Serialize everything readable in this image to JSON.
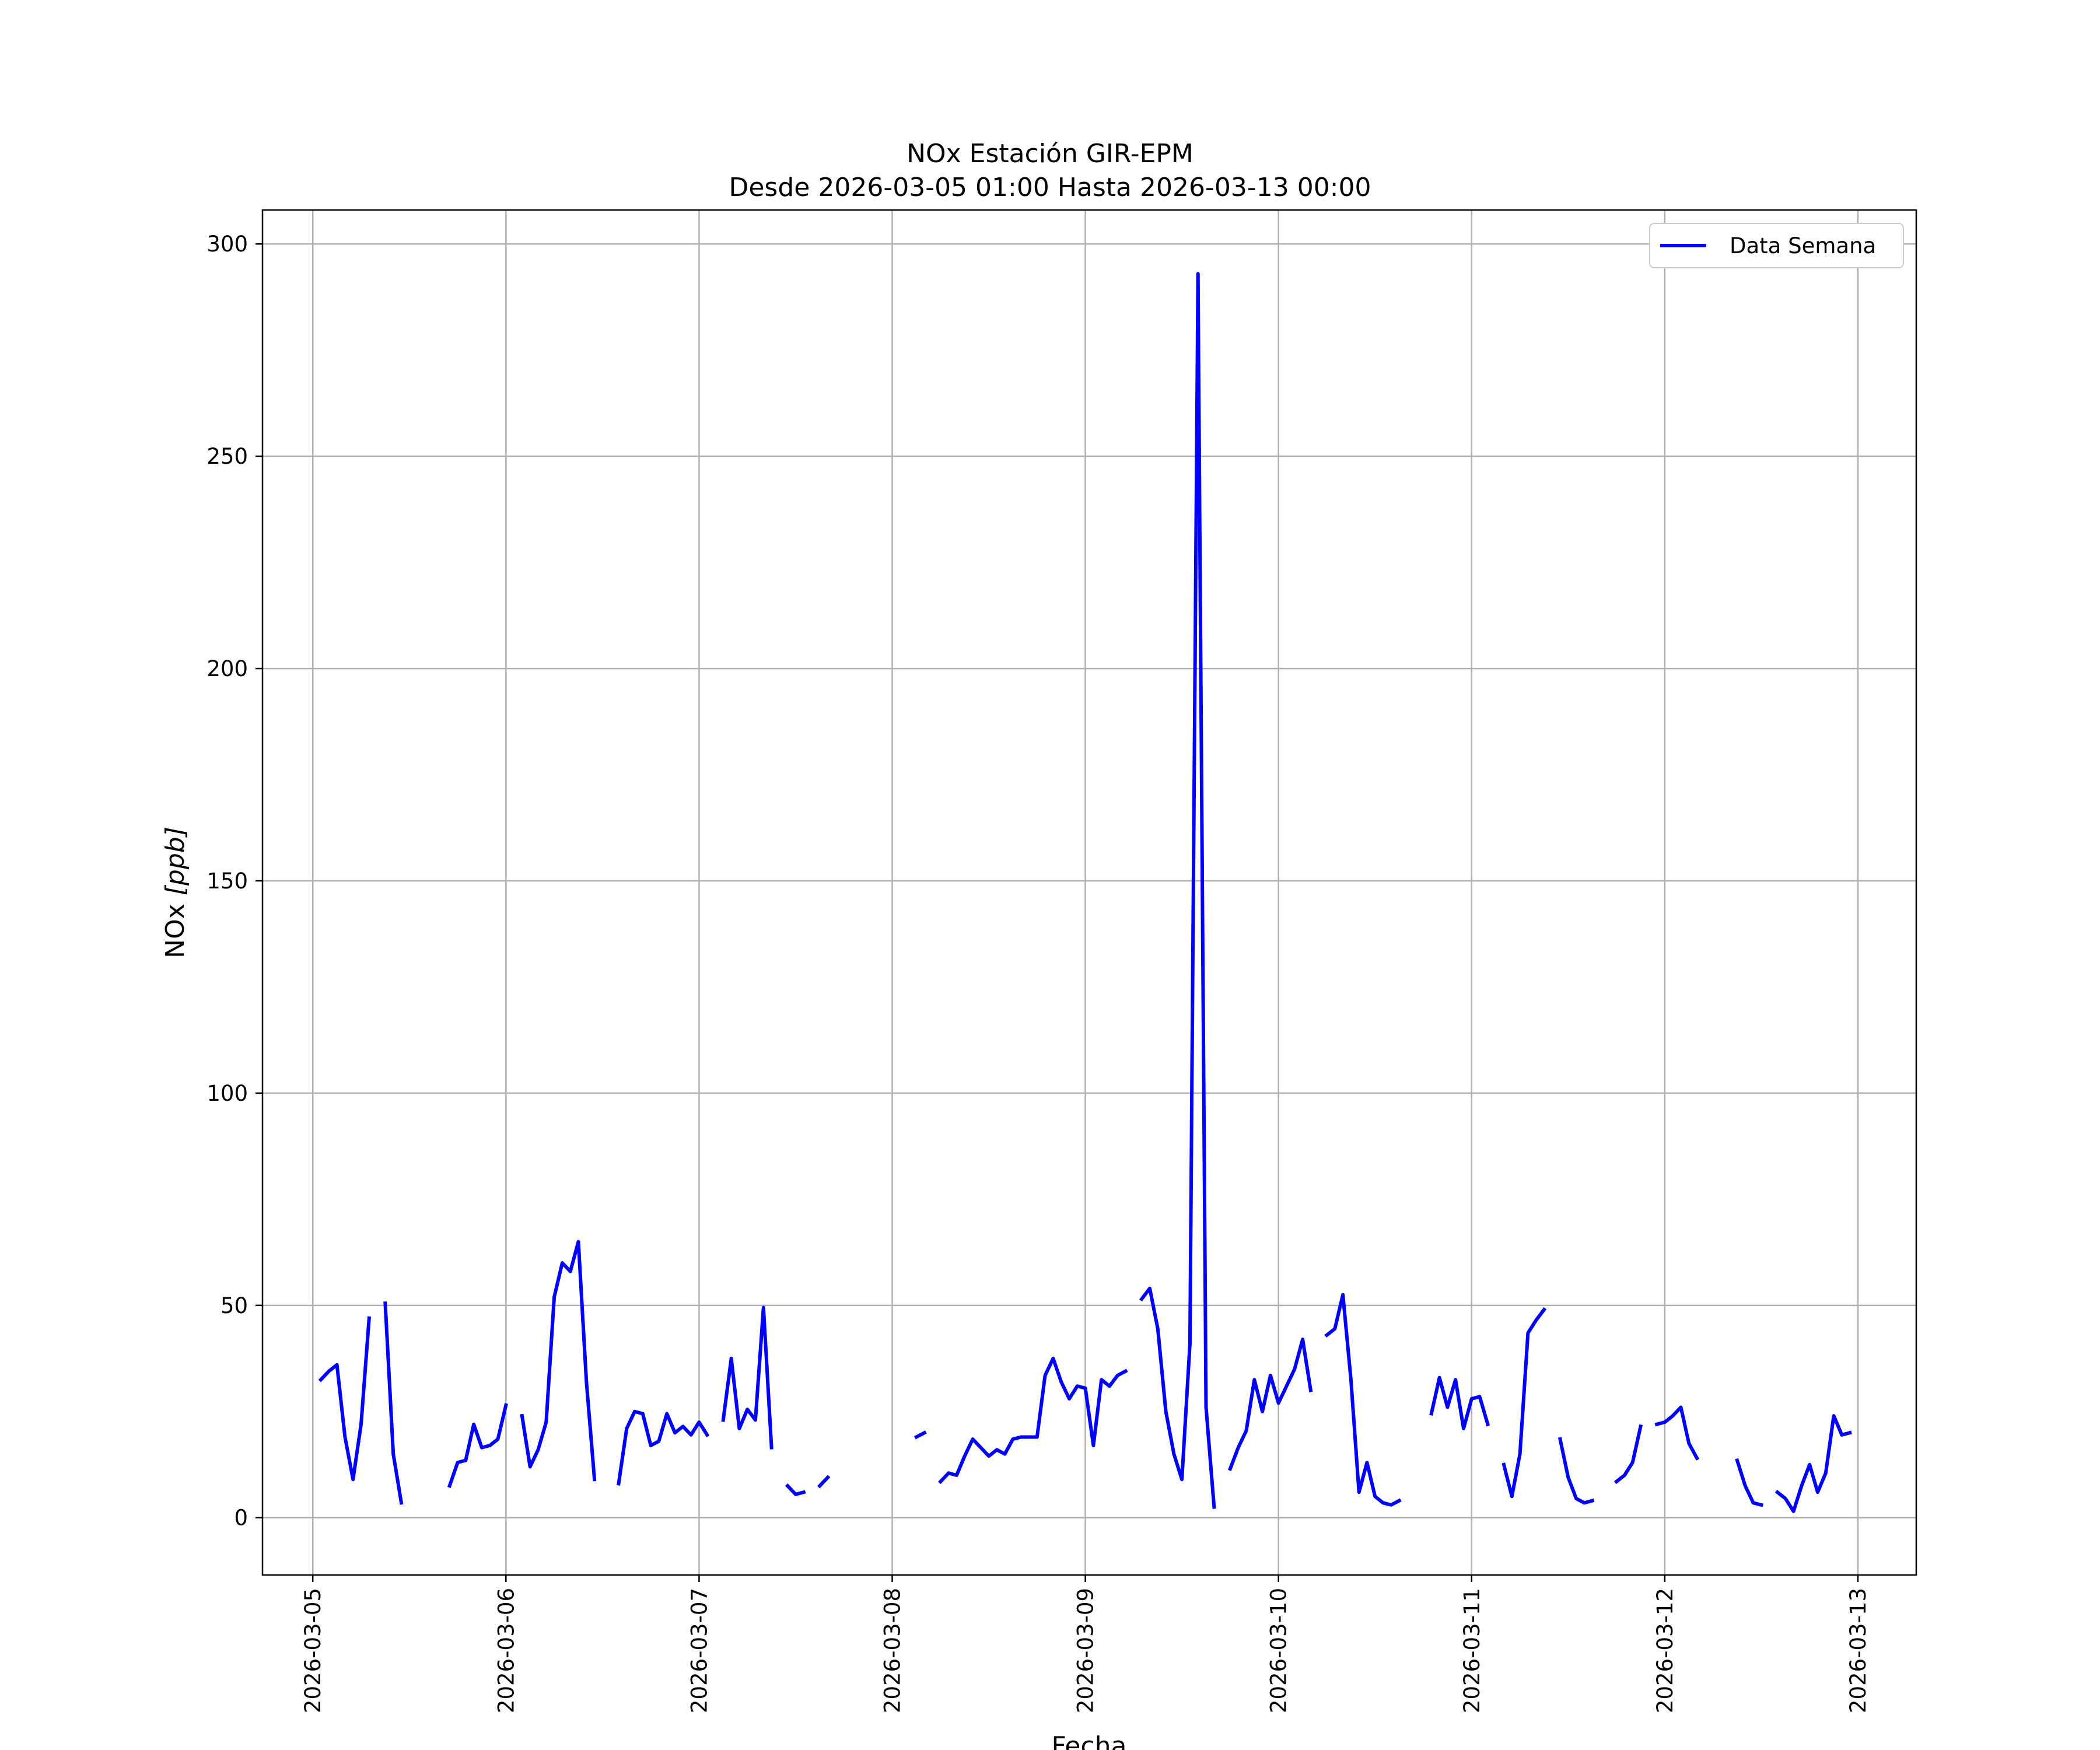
{
  "chart_data": {
    "type": "line",
    "title": "NOx Estación GIR-EPM",
    "subtitle": "Desde 2026-03-05 01:00 Hasta 2026-03-13 00:00",
    "xlabel": "Fecha",
    "ylabel": "NOx [ppb]",
    "ylabel_main": "NOx ",
    "ylabel_unit": "[ppb]",
    "xlim": [
      "2026-03-04 17:45",
      "2026-03-13 07:15"
    ],
    "ylim": [
      -13.5,
      308
    ],
    "grid": true,
    "legend_position": "upper right",
    "x_ticks": [
      "2026-03-05",
      "2026-03-06",
      "2026-03-07",
      "2026-03-08",
      "2026-03-09",
      "2026-03-10",
      "2026-03-11",
      "2026-03-12",
      "2026-03-13"
    ],
    "y_ticks": [
      0,
      50,
      100,
      150,
      200,
      250,
      300
    ],
    "y_tick_labels": [
      "0",
      "50",
      "100",
      "150",
      "200",
      "250",
      "300"
    ],
    "series": [
      {
        "name": "Data Semana",
        "color": "#0000ff",
        "segments": [
          [
            [
              "2026-03-05 01:00",
              32.5
            ],
            [
              "2026-03-05 02:00",
              34.5
            ],
            [
              "2026-03-05 03:00",
              36
            ],
            [
              "2026-03-05 04:00",
              19
            ],
            [
              "2026-03-05 05:00",
              9
            ],
            [
              "2026-03-05 06:00",
              22
            ],
            [
              "2026-03-05 07:00",
              47
            ]
          ],
          [
            [
              "2026-03-05 09:00",
              50.5
            ],
            [
              "2026-03-05 10:00",
              15
            ],
            [
              "2026-03-05 11:00",
              3.5
            ]
          ],
          [
            [
              "2026-03-05 17:00",
              7.5
            ],
            [
              "2026-03-05 18:00",
              13
            ],
            [
              "2026-03-05 19:00",
              13.5
            ],
            [
              "2026-03-05 20:00",
              22
            ],
            [
              "2026-03-05 21:00",
              16.5
            ],
            [
              "2026-03-05 22:00",
              17
            ],
            [
              "2026-03-05 23:00",
              18.5
            ],
            [
              "2026-03-06 00:00",
              26.5
            ]
          ],
          [
            [
              "2026-03-06 02:00",
              24
            ],
            [
              "2026-03-06 03:00",
              12
            ],
            [
              "2026-03-06 04:00",
              16
            ],
            [
              "2026-03-06 05:00",
              22.5
            ],
            [
              "2026-03-06 06:00",
              52
            ],
            [
              "2026-03-06 07:00",
              60
            ],
            [
              "2026-03-06 08:00",
              58
            ],
            [
              "2026-03-06 09:00",
              65
            ],
            [
              "2026-03-06 10:00",
              32
            ],
            [
              "2026-03-06 11:00",
              9
            ]
          ],
          [
            [
              "2026-03-06 14:00",
              8
            ],
            [
              "2026-03-06 15:00",
              21
            ],
            [
              "2026-03-06 16:00",
              25
            ],
            [
              "2026-03-06 17:00",
              24.5
            ],
            [
              "2026-03-06 18:00",
              17
            ],
            [
              "2026-03-06 19:00",
              18
            ],
            [
              "2026-03-06 20:00",
              24.5
            ],
            [
              "2026-03-06 21:00",
              20
            ],
            [
              "2026-03-06 22:00",
              21.5
            ],
            [
              "2026-03-06 23:00",
              19.5
            ],
            [
              "2026-03-07 00:00",
              22.5
            ],
            [
              "2026-03-07 01:00",
              19.5
            ]
          ],
          [
            [
              "2026-03-07 03:00",
              23
            ],
            [
              "2026-03-07 04:00",
              37.5
            ],
            [
              "2026-03-07 05:00",
              21
            ],
            [
              "2026-03-07 06:00",
              25.5
            ],
            [
              "2026-03-07 07:00",
              23
            ],
            [
              "2026-03-07 08:00",
              49.5
            ],
            [
              "2026-03-07 09:00",
              16.5
            ]
          ],
          [
            [
              "2026-03-07 11:00",
              7.5
            ],
            [
              "2026-03-07 12:00",
              5.5
            ],
            [
              "2026-03-07 13:00",
              6
            ]
          ],
          [
            [
              "2026-03-07 15:00",
              7.5
            ],
            [
              "2026-03-07 16:00",
              9.5
            ]
          ],
          [
            [
              "2026-03-08 03:00",
              19
            ],
            [
              "2026-03-08 04:00",
              20
            ]
          ],
          [
            [
              "2026-03-08 06:00",
              8.5
            ],
            [
              "2026-03-08 07:00",
              10.5
            ],
            [
              "2026-03-08 08:00",
              10
            ],
            [
              "2026-03-08 09:00",
              14.5
            ],
            [
              "2026-03-08 10:00",
              18.5
            ],
            [
              "2026-03-08 11:00",
              16.5
            ],
            [
              "2026-03-08 12:00",
              14.5
            ],
            [
              "2026-03-08 13:00",
              16
            ],
            [
              "2026-03-08 14:00",
              15
            ],
            [
              "2026-03-08 15:00",
              18.5
            ],
            [
              "2026-03-08 16:00",
              19
            ],
            [
              "2026-03-08 17:00",
              19
            ],
            [
              "2026-03-08 18:00",
              19
            ],
            [
              "2026-03-08 19:00",
              33.5
            ],
            [
              "2026-03-08 20:00",
              37.5
            ],
            [
              "2026-03-08 21:00",
              32
            ],
            [
              "2026-03-08 22:00",
              28
            ],
            [
              "2026-03-08 23:00",
              31
            ],
            [
              "2026-03-09 00:00",
              30.5
            ],
            [
              "2026-03-09 01:00",
              17
            ],
            [
              "2026-03-09 02:00",
              32.5
            ],
            [
              "2026-03-09 03:00",
              31
            ],
            [
              "2026-03-09 04:00",
              33.5
            ],
            [
              "2026-03-09 05:00",
              34.5
            ]
          ],
          [
            [
              "2026-03-09 07:00",
              51.5
            ],
            [
              "2026-03-09 08:00",
              54
            ],
            [
              "2026-03-09 09:00",
              44.5
            ],
            [
              "2026-03-09 10:00",
              25
            ],
            [
              "2026-03-09 11:00",
              15
            ],
            [
              "2026-03-09 12:00",
              9
            ],
            [
              "2026-03-09 13:00",
              41
            ],
            [
              "2026-03-09 14:00",
              293
            ],
            [
              "2026-03-09 15:00",
              26
            ],
            [
              "2026-03-09 16:00",
              2.5
            ]
          ],
          [
            [
              "2026-03-09 18:00",
              11.5
            ],
            [
              "2026-03-09 19:00",
              16.5
            ],
            [
              "2026-03-09 20:00",
              20.5
            ],
            [
              "2026-03-09 21:00",
              32.5
            ],
            [
              "2026-03-09 22:00",
              25
            ],
            [
              "2026-03-09 23:00",
              33.5
            ],
            [
              "2026-03-10 00:00",
              27
            ],
            [
              "2026-03-10 01:00",
              31
            ],
            [
              "2026-03-10 02:00",
              35
            ],
            [
              "2026-03-10 03:00",
              42
            ],
            [
              "2026-03-10 04:00",
              30
            ]
          ],
          [
            [
              "2026-03-10 06:00",
              43
            ],
            [
              "2026-03-10 07:00",
              44.5
            ],
            [
              "2026-03-10 08:00",
              52.5
            ],
            [
              "2026-03-10 09:00",
              32.5
            ],
            [
              "2026-03-10 10:00",
              6
            ],
            [
              "2026-03-10 11:00",
              13
            ],
            [
              "2026-03-10 12:00",
              5
            ],
            [
              "2026-03-10 13:00",
              3.5
            ],
            [
              "2026-03-10 14:00",
              3
            ],
            [
              "2026-03-10 15:00",
              4
            ]
          ],
          [
            [
              "2026-03-10 19:00",
              24.5
            ],
            [
              "2026-03-10 20:00",
              33
            ],
            [
              "2026-03-10 21:00",
              26
            ],
            [
              "2026-03-10 22:00",
              32.5
            ],
            [
              "2026-03-10 23:00",
              21
            ],
            [
              "2026-03-11 00:00",
              28
            ],
            [
              "2026-03-11 01:00",
              28.5
            ],
            [
              "2026-03-11 02:00",
              22
            ]
          ],
          [
            [
              "2026-03-11 04:00",
              12.5
            ],
            [
              "2026-03-11 05:00",
              5
            ],
            [
              "2026-03-11 06:00",
              15
            ],
            [
              "2026-03-11 07:00",
              43.5
            ],
            [
              "2026-03-11 08:00",
              46.5
            ],
            [
              "2026-03-11 09:00",
              49
            ]
          ],
          [
            [
              "2026-03-11 11:00",
              18.5
            ],
            [
              "2026-03-11 12:00",
              9.5
            ],
            [
              "2026-03-11 13:00",
              4.5
            ],
            [
              "2026-03-11 14:00",
              3.5
            ],
            [
              "2026-03-11 15:00",
              4
            ]
          ],
          [
            [
              "2026-03-11 18:00",
              8.5
            ],
            [
              "2026-03-11 19:00",
              10
            ],
            [
              "2026-03-11 20:00",
              13
            ],
            [
              "2026-03-11 21:00",
              21.5
            ]
          ],
          [
            [
              "2026-03-11 23:00",
              22
            ],
            [
              "2026-03-12 00:00",
              22.5
            ],
            [
              "2026-03-12 01:00",
              24
            ],
            [
              "2026-03-12 02:00",
              26
            ],
            [
              "2026-03-12 03:00",
              17.5
            ],
            [
              "2026-03-12 04:00",
              14
            ]
          ],
          [
            [
              "2026-03-12 09:00",
              13.5
            ],
            [
              "2026-03-12 10:00",
              7.5
            ],
            [
              "2026-03-12 11:00",
              3.5
            ],
            [
              "2026-03-12 12:00",
              3
            ]
          ],
          [
            [
              "2026-03-12 14:00",
              6
            ],
            [
              "2026-03-12 15:00",
              4.5
            ],
            [
              "2026-03-12 16:00",
              1.5
            ],
            [
              "2026-03-12 17:00",
              7.5
            ],
            [
              "2026-03-12 18:00",
              12.5
            ],
            [
              "2026-03-12 19:00",
              6
            ],
            [
              "2026-03-12 20:00",
              10.5
            ],
            [
              "2026-03-12 21:00",
              24
            ],
            [
              "2026-03-12 22:00",
              19.5
            ],
            [
              "2026-03-12 23:00",
              20
            ]
          ]
        ]
      }
    ]
  }
}
